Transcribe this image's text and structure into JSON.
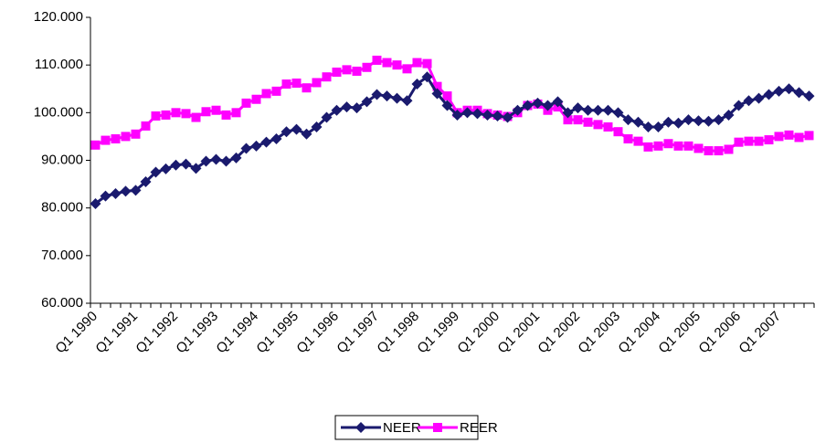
{
  "chart_data": {
    "type": "line",
    "categories": [
      "Q1 1990",
      null,
      null,
      null,
      "Q1 1991",
      null,
      null,
      null,
      "Q1 1992",
      null,
      null,
      null,
      "Q1 1993",
      null,
      null,
      null,
      "Q1 1994",
      null,
      null,
      null,
      "Q1 1995",
      null,
      null,
      null,
      "Q1 1996",
      null,
      null,
      null,
      "Q1 1997",
      null,
      null,
      null,
      "Q1 1998",
      null,
      null,
      null,
      "Q1 1999",
      null,
      null,
      null,
      "Q1 2000",
      null,
      null,
      null,
      "Q1 2001",
      null,
      null,
      null,
      "Q1 2002",
      null,
      null,
      null,
      "Q1 2003",
      null,
      null,
      null,
      "Q1 2004",
      null,
      null,
      null,
      "Q1 2005",
      null,
      null,
      null,
      "Q1 2006",
      null,
      null,
      null,
      "Q1 2007",
      null,
      null,
      null
    ],
    "series": [
      {
        "name": "NEER",
        "color": "#1a1a6e",
        "marker": "diamond",
        "values": [
          80.9,
          82.5,
          83.0,
          83.5,
          83.7,
          85.5,
          87.5,
          88.2,
          89.0,
          89.2,
          88.3,
          89.8,
          90.2,
          89.8,
          90.5,
          92.5,
          93.0,
          93.8,
          94.5,
          96.0,
          96.5,
          95.5,
          97.0,
          99.0,
          100.5,
          101.2,
          101.0,
          102.3,
          103.8,
          103.5,
          103.0,
          102.5,
          106.0,
          107.5,
          104.0,
          101.5,
          99.5,
          100.0,
          99.8,
          99.5,
          99.3,
          99.0,
          100.5,
          101.5,
          102.0,
          101.5,
          102.3,
          100.0,
          101.0,
          100.5,
          100.5,
          100.5,
          100.0,
          98.5,
          98.0,
          97.0,
          97.0,
          98.0,
          97.8,
          98.5,
          98.3,
          98.2,
          98.5,
          99.5,
          101.5,
          102.5,
          103.0,
          103.8,
          104.5,
          105.0,
          104.2,
          103.5
        ]
      },
      {
        "name": "REER",
        "color": "#ff00ff",
        "marker": "square",
        "values": [
          93.2,
          94.2,
          94.5,
          95.0,
          95.5,
          97.2,
          99.3,
          99.5,
          100.0,
          99.8,
          99.0,
          100.2,
          100.5,
          99.5,
          100.0,
          102.0,
          102.8,
          104.0,
          104.5,
          106.0,
          106.2,
          105.2,
          106.3,
          107.5,
          108.5,
          109.0,
          108.7,
          109.5,
          111.0,
          110.5,
          110.0,
          109.2,
          110.5,
          110.3,
          105.5,
          103.5,
          100.0,
          100.5,
          100.5,
          99.8,
          99.5,
          99.2,
          100.0,
          101.5,
          101.8,
          100.5,
          101.2,
          98.5,
          98.5,
          98.0,
          97.5,
          97.0,
          96.0,
          94.5,
          94.0,
          92.8,
          93.0,
          93.5,
          93.0,
          93.0,
          92.5,
          92.0,
          92.0,
          92.3,
          93.8,
          94.0,
          94.0,
          94.3,
          95.0,
          95.3,
          94.8,
          95.2
        ]
      }
    ],
    "ylim": [
      60,
      120
    ],
    "yticks": [
      {
        "value": 60,
        "label": "60.000"
      },
      {
        "value": 70,
        "label": "70.000"
      },
      {
        "value": 80,
        "label": "80.000"
      },
      {
        "value": 90,
        "label": "90.000"
      },
      {
        "value": 100,
        "label": "100.000"
      },
      {
        "value": 110,
        "label": "110.000"
      },
      {
        "value": 120,
        "label": "120.000"
      }
    ],
    "grid": false,
    "legend": "bottom"
  }
}
